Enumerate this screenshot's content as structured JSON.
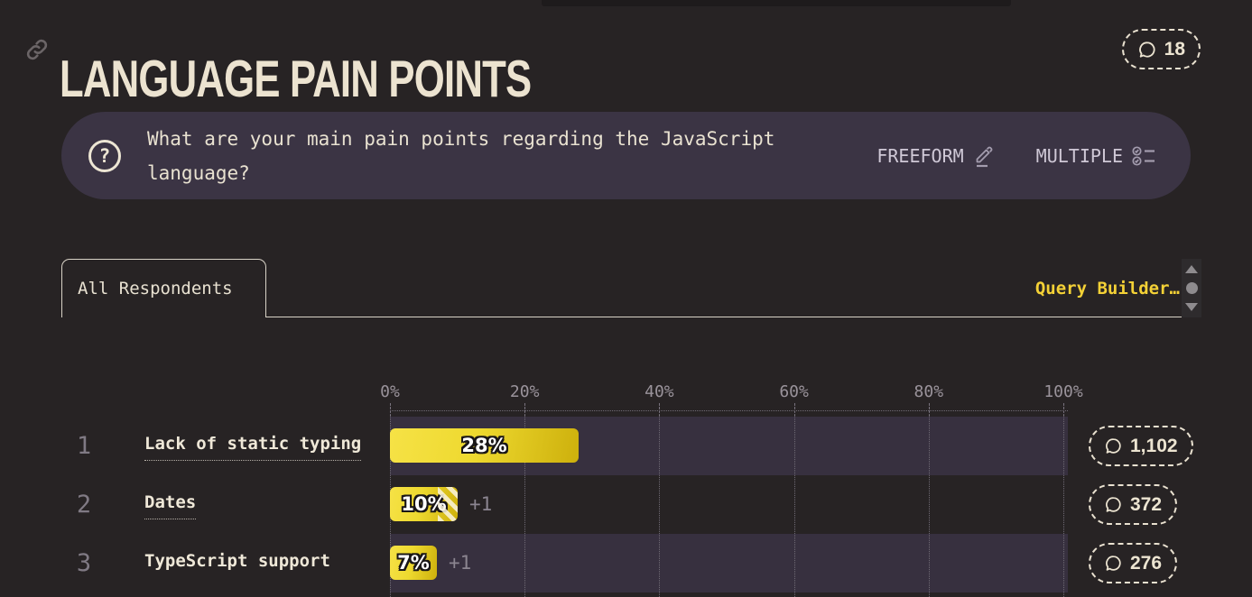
{
  "header": {
    "title": "LANGUAGE PAIN POINTS",
    "comments_count": "18"
  },
  "question": {
    "text": "What are your main pain points regarding the JavaScript language?",
    "freeform_label": "FREEFORM",
    "multiple_label": "MULTIPLE"
  },
  "tabs": {
    "active_tab": "All Respondents",
    "query_builder_label": "Query Builder…"
  },
  "chart_data": {
    "type": "bar",
    "orientation": "horizontal",
    "title": "Language Pain Points",
    "x_ticks": [
      "0%",
      "20%",
      "40%",
      "60%",
      "80%",
      "100%"
    ],
    "xlim": [
      0,
      100
    ],
    "grid": "dotted-vertical",
    "rows": [
      {
        "rank": "1",
        "label": "Lack of static typing",
        "value": 28,
        "value_label": "28%",
        "delta": "",
        "comments": "1,102",
        "striped": false,
        "underline": true
      },
      {
        "rank": "2",
        "label": "Dates",
        "value": 10,
        "value_label": "10%",
        "delta": "+1",
        "comments": "372",
        "striped": true,
        "underline": true
      },
      {
        "rank": "3",
        "label": "TypeScript support",
        "value": 7,
        "value_label": "7%",
        "delta": "+1",
        "comments": "276",
        "striped": false,
        "underline": false
      }
    ]
  },
  "colors": {
    "background": "#272324",
    "band": "#37303f",
    "question_box": "#3b3444",
    "cream": "#ece4d1",
    "accent_yellow": "#f4d136",
    "bar_gradient_start": "#f6e246",
    "bar_gradient_end": "#cdb00c",
    "muted_gray": "#9a939b"
  }
}
